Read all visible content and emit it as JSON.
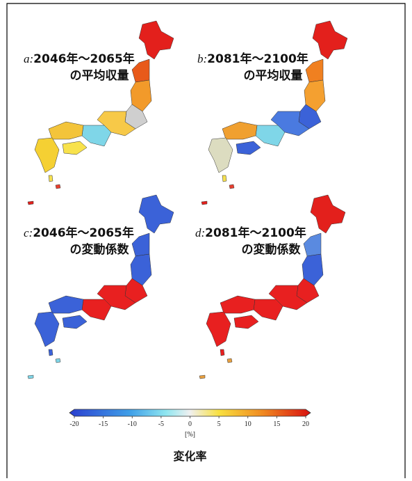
{
  "panels": [
    {
      "letter": "a:",
      "period": "2046年～2065年",
      "measure": "の平均収量"
    },
    {
      "letter": "b:",
      "period": "2081年～2100年",
      "measure": "の平均収量"
    },
    {
      "letter": "c:",
      "period": "2046年～2065年",
      "measure": "の変動係数"
    },
    {
      "letter": "d:",
      "period": "2081年～2100年",
      "measure": "の変動係数"
    }
  ],
  "colorbar": {
    "ticks": [
      -20,
      -15,
      -10,
      -5,
      0,
      5,
      10,
      15,
      20
    ],
    "unit": "[%]",
    "title": "変化率"
  }
}
